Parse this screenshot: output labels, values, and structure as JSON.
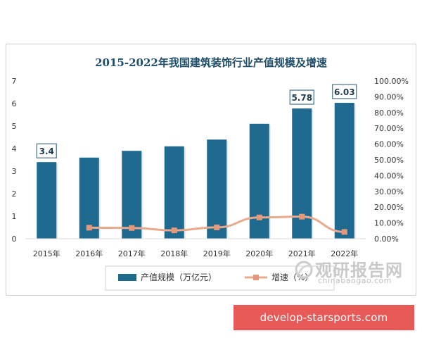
{
  "chart_data": {
    "type": "bar",
    "title": "2015-2022年我国建筑装饰行业产值规模及增速",
    "categories": [
      "2015年",
      "2016年",
      "2017年",
      "2018年",
      "2019年",
      "2020年",
      "2021年",
      "2022年"
    ],
    "series": [
      {
        "name": "产值规模（万亿元）",
        "type": "bar",
        "axis": "left",
        "color": "#1f6a8f",
        "values": [
          3.4,
          3.6,
          3.9,
          4.1,
          4.4,
          5.1,
          5.78,
          6.03
        ]
      },
      {
        "name": "增速（%）",
        "type": "line",
        "axis": "right",
        "color": "#e9a98d",
        "values": [
          null,
          7.0,
          6.8,
          5.3,
          7.2,
          13.5,
          14.0,
          4.3
        ]
      }
    ],
    "data_labels": [
      {
        "index": 0,
        "text": "3.4"
      },
      {
        "index": 6,
        "text": "5.78"
      },
      {
        "index": 7,
        "text": "6.03"
      }
    ],
    "y_left": {
      "min": 0,
      "max": 7,
      "ticks": [
        "0",
        "1",
        "2",
        "3",
        "4",
        "5",
        "6",
        "7"
      ]
    },
    "y_right": {
      "min": 0,
      "max": 100,
      "ticks": [
        "0.00%",
        "10.00%",
        "20.00%",
        "30.00%",
        "40.00%",
        "50.00%",
        "60.00%",
        "70.00%",
        "80.00%",
        "90.00%",
        "100.00%"
      ]
    },
    "grid": false,
    "legend_position": "bottom"
  },
  "watermark": {
    "text_cn": "观研报告网",
    "text_en": "chinabaogao.com"
  },
  "banner": {
    "text": "develop-starsports.com",
    "color": "#e85a57"
  },
  "colors": {
    "bar": "#1f6a8f",
    "line": "#e9a98d",
    "title": "#1f4e6b",
    "axis_text": "#333333"
  }
}
